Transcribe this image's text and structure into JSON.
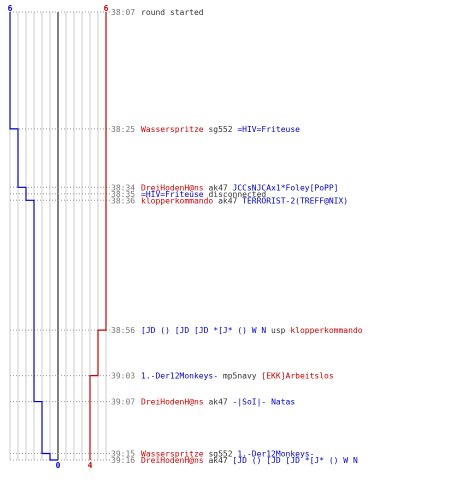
{
  "chart_data": {
    "type": "line",
    "title": "",
    "score_start": {
      "blue": "6",
      "red": "6"
    },
    "score_end": {
      "blue": "0",
      "red": "4"
    },
    "ylim": [
      0,
      6
    ],
    "colors": {
      "blue": "#0000cc",
      "red": "#cc0000",
      "grid": "#cccccc",
      "center": "#555555",
      "time": "#777777",
      "dots": "#999999"
    },
    "events": [
      {
        "time": "38:07",
        "parts": [
          {
            "text": "round started",
            "team": "none"
          }
        ]
      },
      {
        "time": "38:25",
        "parts": [
          {
            "text": "Wasserspritze",
            "team": "red"
          },
          {
            "text": " sg552 ",
            "team": "none"
          },
          {
            "text": "=HIV=Friteuse",
            "team": "blue"
          }
        ]
      },
      {
        "time": "38:34",
        "parts": [
          {
            "text": "DreiHodenH@ns",
            "team": "red"
          },
          {
            "text": " ak47 ",
            "team": "none"
          },
          {
            "text": "JCCsNJCAx1*Foley[PoPP]",
            "team": "blue"
          }
        ]
      },
      {
        "time": "38:35",
        "parts": [
          {
            "text": "=HIV=Friteuse",
            "team": "blue"
          },
          {
            "text": " disconnected",
            "team": "none"
          }
        ]
      },
      {
        "time": "38:36",
        "parts": [
          {
            "text": "klopperkommando",
            "team": "red"
          },
          {
            "text": " ak47 ",
            "team": "none"
          },
          {
            "text": "TERRORIST-2(TREFF@NIX)",
            "team": "blue"
          }
        ]
      },
      {
        "time": "38:56",
        "parts": [
          {
            "text": "[JD () [JD [JD *[J* () W N",
            "team": "blue"
          },
          {
            "text": " usp ",
            "team": "none"
          },
          {
            "text": "klopperkommando",
            "team": "red"
          }
        ]
      },
      {
        "time": "39:03",
        "parts": [
          {
            "text": "1.-Der12Monkeys-",
            "team": "blue"
          },
          {
            "text": " mp5navy ",
            "team": "none"
          },
          {
            "text": "[EKK]Arbeitslos",
            "team": "red"
          }
        ]
      },
      {
        "time": "39:07",
        "parts": [
          {
            "text": "DreiHodenH@ns",
            "team": "red"
          },
          {
            "text": " ak47 ",
            "team": "none"
          },
          {
            "text": "-|SoI|- Natas",
            "team": "blue"
          }
        ]
      },
      {
        "time": "39:15",
        "parts": [
          {
            "text": "Wasserspritze",
            "team": "red"
          },
          {
            "text": " sg552 ",
            "team": "none"
          },
          {
            "text": "1.-Der12Monkeys-",
            "team": "blue"
          }
        ]
      },
      {
        "time": "39:16",
        "parts": [
          {
            "text": "DreiHodenH@ns",
            "team": "red"
          },
          {
            "text": " ak47 ",
            "team": "none"
          },
          {
            "text": "[JD () [JD [JD *[J* () W N",
            "team": "blue"
          }
        ]
      }
    ],
    "blue_series": {
      "name": "",
      "times": [
        "38:07",
        "38:25",
        "38:34",
        "38:36",
        "39:07",
        "39:15",
        "39:16"
      ],
      "values": [
        6,
        5,
        4,
        3,
        2,
        1,
        0
      ]
    },
    "red_series": {
      "name": "",
      "times": [
        "38:07",
        "38:56",
        "39:03"
      ],
      "values": [
        6,
        5,
        4
      ]
    }
  }
}
